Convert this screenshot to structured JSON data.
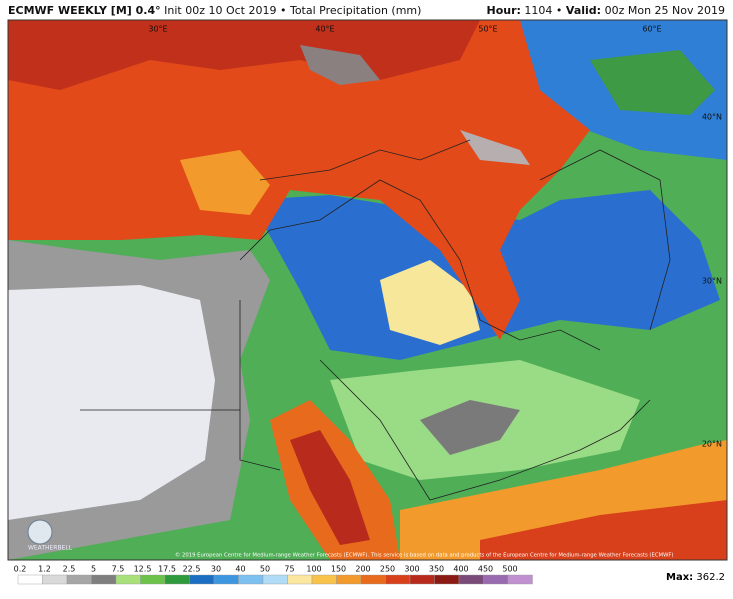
{
  "header": {
    "model": "ECMWF WEEKLY [M] 0.4°",
    "init": "Init 00z 10 Oct 2019",
    "sep": "•",
    "field": "Total Precipitation (mm)",
    "hour_label": "Hour:",
    "hour": "1104",
    "valid_label": "Valid:",
    "valid": "00z Mon 25 Nov 2019"
  },
  "map": {
    "lon_labels": [
      "30°E",
      "40°E",
      "50°E",
      "60°E"
    ],
    "lat_labels": [
      "40°N",
      "30°N",
      "20°N"
    ],
    "copyright": "© 2019 European Centre for Medium-range Weather Forecasts (ECMWF). This service is based on data and products of the European Centre for Medium-range Weather Forecasts (ECMWF)",
    "logo": "WEATHERBELL"
  },
  "legend": {
    "labels": [
      0.2,
      1.2,
      2.5,
      5,
      7.5,
      12.5,
      17.5,
      22.5,
      30,
      40,
      50,
      75,
      100,
      150,
      200,
      250,
      300,
      350,
      400,
      450,
      500
    ],
    "colors": [
      "#ffffff",
      "#d9d9d9",
      "#a6a6a6",
      "#7f7f7f",
      "#a8e07a",
      "#6cc24a",
      "#2e9a3c",
      "#1c6ec2",
      "#3d96e0",
      "#7cc0f0",
      "#b0dcf8",
      "#fce7a0",
      "#f9c24b",
      "#f39a2c",
      "#e86a1c",
      "#d8401c",
      "#b82a1c",
      "#8c1a14",
      "#7a4a78",
      "#9a6ab0",
      "#c090d0"
    ],
    "max_label": "Max:",
    "max": 362.2
  }
}
